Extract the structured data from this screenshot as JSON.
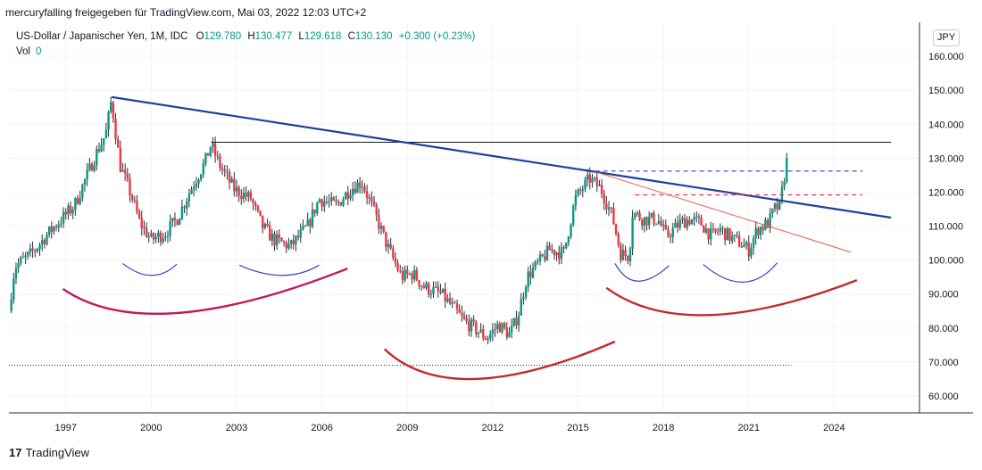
{
  "header": {
    "attribution": "mercuryfalling freigegeben für TradingView.com, Mai 03, 2022 12:03 UTC+2"
  },
  "legend": {
    "symbol": "US-Dollar / Japanischer Yen, 1M, IDC",
    "o_key": "O",
    "o_val": "129.780",
    "h_key": "H",
    "h_val": "130.477",
    "l_key": "L",
    "l_val": "129.618",
    "c_key": "C",
    "c_val": "130.130",
    "change": "+0.300 (+0.23%)",
    "vol_label": "Vol",
    "vol_val": "0"
  },
  "currency_button": "JPY",
  "footer": {
    "brand": "TradingView",
    "logo_glyph": "17"
  },
  "colors": {
    "up": "#089981",
    "down": "#f23645",
    "wick": "#2a2e39",
    "trend": "#1e3f9e",
    "thin_red": "#f0584e",
    "arc_red": "#c2185b",
    "arc_blue": "#3446c2"
  },
  "chart_data": {
    "type": "candlestick",
    "title": "US-Dollar / Japanischer Yen, 1M, IDC",
    "interval": "1M",
    "ylim": [
      55,
      170
    ],
    "xlim": [
      1995.0,
      2027.0
    ],
    "y_ticks": [
      "60.000",
      "70.000",
      "80.000",
      "90.000",
      "100.000",
      "110.000",
      "120.000",
      "130.000",
      "140.000",
      "150.000",
      "160.000"
    ],
    "x_ticks": [
      "1997",
      "2000",
      "2003",
      "2006",
      "2009",
      "2012",
      "2015",
      "2018",
      "2021",
      "2024"
    ],
    "last_close": 130.13,
    "anchors": [
      [
        1995.0,
        85
      ],
      [
        1995.2,
        98
      ],
      [
        1995.8,
        102
      ],
      [
        1996.5,
        109
      ],
      [
        1997.3,
        116
      ],
      [
        1997.7,
        124
      ],
      [
        1998.1,
        132
      ],
      [
        1998.4,
        137
      ],
      [
        1998.6,
        147
      ],
      [
        1998.9,
        128
      ],
      [
        1999.3,
        119
      ],
      [
        1999.6,
        111
      ],
      [
        2000.0,
        106
      ],
      [
        2000.5,
        108
      ],
      [
        2000.9,
        112
      ],
      [
        2001.4,
        121
      ],
      [
        2001.9,
        129
      ],
      [
        2002.1,
        134
      ],
      [
        2002.4,
        128
      ],
      [
        2002.9,
        121
      ],
      [
        2003.5,
        118
      ],
      [
        2003.9,
        110
      ],
      [
        2004.3,
        106
      ],
      [
        2004.9,
        104
      ],
      [
        2005.5,
        110
      ],
      [
        2005.9,
        118
      ],
      [
        2006.5,
        116
      ],
      [
        2007.0,
        121
      ],
      [
        2007.4,
        123
      ],
      [
        2007.8,
        115
      ],
      [
        2008.3,
        104
      ],
      [
        2008.8,
        95
      ],
      [
        2009.2,
        96
      ],
      [
        2009.6,
        92
      ],
      [
        2010.2,
        90
      ],
      [
        2010.6,
        86
      ],
      [
        2011.0,
        82
      ],
      [
        2011.5,
        79
      ],
      [
        2011.8,
        77
      ],
      [
        2012.2,
        81
      ],
      [
        2012.6,
        78
      ],
      [
        2012.9,
        84
      ],
      [
        2013.2,
        95
      ],
      [
        2013.6,
        99
      ],
      [
        2014.0,
        103
      ],
      [
        2014.5,
        102
      ],
      [
        2014.9,
        118
      ],
      [
        2015.4,
        124
      ],
      [
        2015.8,
        121
      ],
      [
        2016.2,
        113
      ],
      [
        2016.5,
        102
      ],
      [
        2016.8,
        101
      ],
      [
        2016.9,
        114
      ],
      [
        2017.3,
        112
      ],
      [
        2017.8,
        112
      ],
      [
        2018.1,
        107
      ],
      [
        2018.6,
        111
      ],
      [
        2018.9,
        112
      ],
      [
        2019.3,
        111
      ],
      [
        2019.7,
        107
      ],
      [
        2020.0,
        109
      ],
      [
        2020.3,
        107
      ],
      [
        2020.7,
        105
      ],
      [
        2021.0,
        103
      ],
      [
        2021.3,
        109
      ],
      [
        2021.7,
        111
      ],
      [
        2021.9,
        115
      ],
      [
        2022.1,
        116
      ],
      [
        2022.2,
        122
      ],
      [
        2022.35,
        130.1
      ]
    ],
    "annotations": {
      "trendline_main": [
        [
          1998.6,
          148.0
        ],
        [
          2026.0,
          112.5
        ]
      ],
      "horizontal_high": {
        "x": [
          2002.1,
          2026.0
        ],
        "y": 134.7
      },
      "dashed_blue": {
        "x": [
          2015.6,
          2025.0
        ],
        "y": 126.2
      },
      "dashed_red": {
        "x": [
          2017.0,
          2025.0
        ],
        "y": 119.2
      },
      "dotted_low": {
        "x": [
          1995.0,
          2022.5
        ],
        "y": 69.0
      },
      "thin_red_trend": [
        [
          2015.6,
          126.0
        ],
        [
          2024.6,
          102.3
        ]
      ],
      "arcs": [
        {
          "color": "blue",
          "p": [
            [
              1999.0,
              99.0
            ],
            [
              2000.0,
              95.5
            ],
            [
              2000.9,
              98.8
            ]
          ]
        },
        {
          "color": "blue",
          "p": [
            [
              2003.1,
              98.5
            ],
            [
              2004.6,
              95.5
            ],
            [
              2005.9,
              98.5
            ]
          ]
        },
        {
          "color": "red",
          "p": [
            [
              1996.9,
              91.5
            ],
            [
              2000.9,
              84.4
            ],
            [
              2006.9,
              97.5
            ]
          ]
        },
        {
          "color": "red",
          "p": [
            [
              2008.2,
              73.8
            ],
            [
              2011.4,
              65.0
            ],
            [
              2016.3,
              76.0
            ]
          ]
        },
        {
          "color": "blue",
          "p": [
            [
              2016.3,
              99.0
            ],
            [
              2017.1,
              93.8
            ],
            [
              2018.2,
              98.4
            ]
          ]
        },
        {
          "color": "blue",
          "p": [
            [
              2019.4,
              98.7
            ],
            [
              2020.8,
              93.5
            ],
            [
              2022.0,
              99.2
            ]
          ]
        },
        {
          "color": "red",
          "p": [
            [
              2016.0,
              91.8
            ],
            [
              2019.6,
              83.8
            ],
            [
              2024.8,
              94.1
            ]
          ]
        }
      ]
    }
  }
}
